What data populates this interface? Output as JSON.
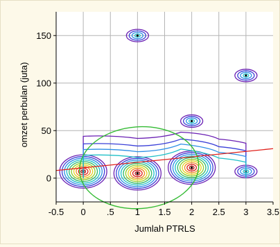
{
  "chart_data": {
    "type": "contour",
    "title": "",
    "xlabel": "Jumlah PTRLS",
    "ylabel": "omzet perbulan (juta)",
    "xlim": [
      -0.5,
      3.5
    ],
    "ylim": [
      -25,
      175
    ],
    "x_ticks": [
      -0.5,
      0,
      0.5,
      1,
      1.5,
      2,
      2.5,
      3,
      3.5
    ],
    "x_tick_labels": [
      "-0.5",
      "0",
      ".5",
      "1",
      "1.5",
      "2",
      "2.5",
      "3",
      "3.5"
    ],
    "y_ticks": [
      0,
      50,
      100,
      150
    ],
    "y_tick_labels": [
      "0",
      "50",
      "100",
      "150"
    ],
    "grid": true,
    "regression_line": {
      "color": "#e0201a",
      "points": [
        [
          -0.5,
          8
        ],
        [
          3.5,
          31
        ]
      ]
    },
    "confidence_ellipse": {
      "color": "#33bb33",
      "center": [
        1.03,
        11
      ],
      "semi_axis_x": 1.1,
      "semi_axis_y": 43
    },
    "density_peaks": [
      {
        "x": 0,
        "y": 7,
        "level": "high"
      },
      {
        "x": 1,
        "y": 5,
        "level": "high"
      },
      {
        "x": 2,
        "y": 11,
        "level": "high"
      },
      {
        "x": 3,
        "y": 7,
        "level": "low"
      },
      {
        "x": 1,
        "y": 150,
        "level": "low"
      },
      {
        "x": 2,
        "y": 60,
        "level": "low"
      },
      {
        "x": 3,
        "y": 108,
        "level": "low"
      }
    ],
    "contour_colors": [
      "#6a1fb3",
      "#3a3fd8",
      "#2d8fe6",
      "#1fc0c8",
      "#2eb86a",
      "#8fcf2a",
      "#e6d21f",
      "#f08a1f",
      "#e0201a",
      "#b01010"
    ]
  }
}
